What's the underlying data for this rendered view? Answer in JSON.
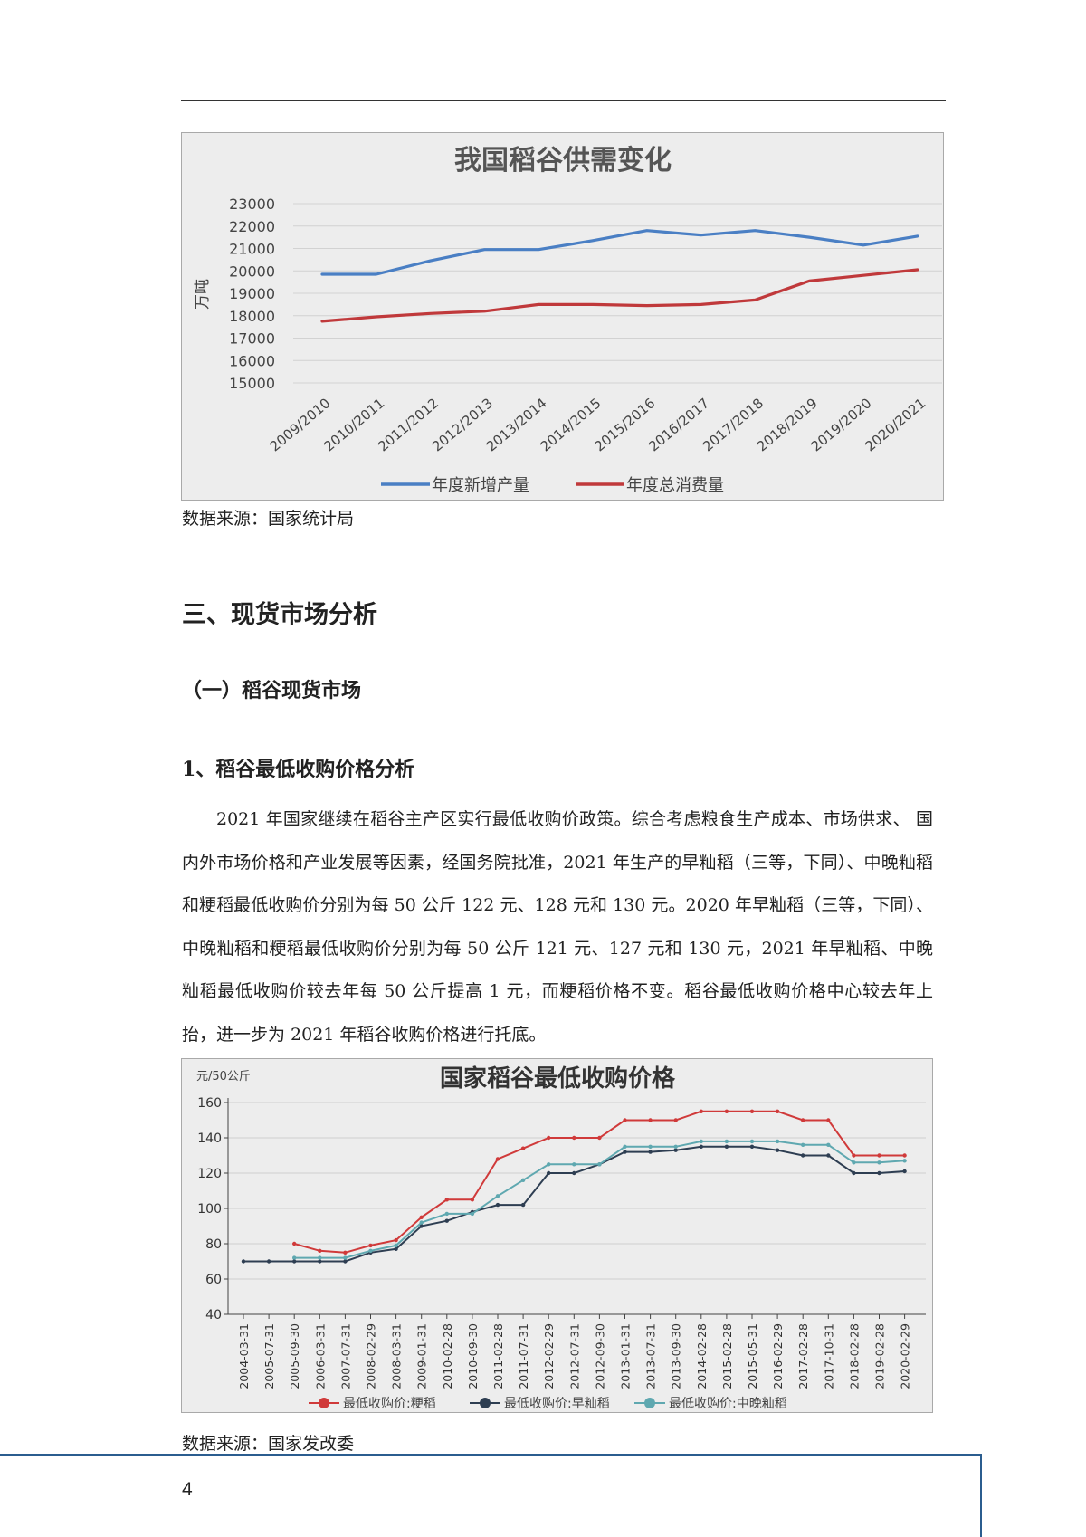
{
  "chart1": {
    "title": "我国稻谷供需变化",
    "ylabel": "万吨",
    "source": "数据来源：国家统计局"
  },
  "section": {
    "heading": "三、现货市场分析",
    "subheading": "（一）稻谷现货市场",
    "subsubheading": "1、稻谷最低收购价格分析",
    "paragraph": "2021 年国家继续在稻谷主产区实行最低收购价政策。综合考虑粮食生产成本、市场供求、 国内外市场价格和产业发展等因素，经国务院批准，2021 年生产的早籼稻（三等，下同）、中晚籼稻和粳稻最低收购价分别为每 50 公斤 122 元、128 元和 130 元。2020 年早籼稻（三等，下同）、中晚籼稻和粳稻最低收购价分别为每 50 公斤 121 元、127 元和 130 元，2021 年早籼稻、中晚籼稻最低收购价较去年每 50 公斤提高 1 元，而粳稻价格不变。稻谷最低收购价格中心较去年上抬，进一步为 2021 年稻谷收购价格进行托底。"
  },
  "chart2": {
    "title": "国家稻谷最低收购价格",
    "unit": "元/50公斤",
    "source": "数据来源：国家发改委"
  },
  "footer": {
    "page_number": "4"
  },
  "colors": {
    "blue_series": "#4a7fc4",
    "red_series": "#c0393b",
    "red2_series": "#d03a3a",
    "navy_series": "#2e3e52",
    "teal_series": "#5fa8b0",
    "footer_rule": "#2b5d8f"
  },
  "chart_data": [
    {
      "type": "line",
      "title": "我国稻谷供需变化",
      "ylabel": "万吨",
      "ylim": [
        15000,
        23000
      ],
      "yticks": [
        15000,
        16000,
        17000,
        18000,
        19000,
        20000,
        21000,
        22000,
        23000
      ],
      "grid": true,
      "legend": "bottom",
      "x": [
        "2009/2010",
        "2010/2011",
        "2011/2012",
        "2012/2013",
        "2013/2014",
        "2014/2015",
        "2015/2016",
        "2016/2017",
        "2017/2018",
        "2018/2019",
        "2019/2020",
        "2020/2021"
      ],
      "series": [
        {
          "name": "年度新增产量",
          "color": "#4a7fc4",
          "values": [
            19850,
            19850,
            20450,
            20950,
            20950,
            21350,
            21800,
            21600,
            21800,
            21500,
            21150,
            21550
          ]
        },
        {
          "name": "年度总消费量",
          "color": "#c0393b",
          "values": [
            17750,
            17950,
            18100,
            18200,
            18500,
            18500,
            18450,
            18500,
            18700,
            19550,
            19800,
            20050
          ]
        }
      ]
    },
    {
      "type": "line",
      "title": "国家稻谷最低收购价格",
      "ylabel": "元/50公斤",
      "ylim": [
        40,
        160
      ],
      "yticks": [
        40,
        60,
        80,
        100,
        120,
        140,
        160
      ],
      "grid": true,
      "legend": "bottom",
      "x": [
        "2004-03-31",
        "2005-07-31",
        "2005-09-30",
        "2006-03-31",
        "2007-07-31",
        "2008-02-29",
        "2008-03-31",
        "2009-01-31",
        "2010-02-28",
        "2010-09-30",
        "2011-02-28",
        "2011-07-31",
        "2012-02-29",
        "2012-07-31",
        "2012-09-30",
        "2013-01-31",
        "2013-07-31",
        "2013-09-30",
        "2014-02-28",
        "2015-02-28",
        "2015-05-31",
        "2016-02-29",
        "2017-02-28",
        "2017-10-31",
        "2018-02-28",
        "2019-02-28",
        "2020-02-29"
      ],
      "series": [
        {
          "name": "最低收购价:粳稻",
          "color": "#d03a3a",
          "values": [
            null,
            null,
            80,
            76,
            75,
            79,
            82,
            95,
            105,
            105,
            128,
            134,
            140,
            140,
            140,
            150,
            150,
            150,
            155,
            155,
            155,
            155,
            150,
            150,
            130,
            130,
            130
          ]
        },
        {
          "name": "最低收购价:早籼稻",
          "color": "#2e3e52",
          "values": [
            70,
            70,
            70,
            70,
            70,
            75,
            77,
            90,
            93,
            98,
            102,
            102,
            120,
            120,
            125,
            132,
            132,
            133,
            135,
            135,
            135,
            133,
            130,
            130,
            120,
            120,
            121
          ]
        },
        {
          "name": "最低收购价:中晚籼稻",
          "color": "#5fa8b0",
          "values": [
            null,
            null,
            72,
            72,
            72,
            76,
            79,
            92,
            97,
            97,
            107,
            116,
            125,
            125,
            125,
            135,
            135,
            135,
            138,
            138,
            138,
            138,
            136,
            136,
            126,
            126,
            127
          ]
        }
      ]
    }
  ]
}
